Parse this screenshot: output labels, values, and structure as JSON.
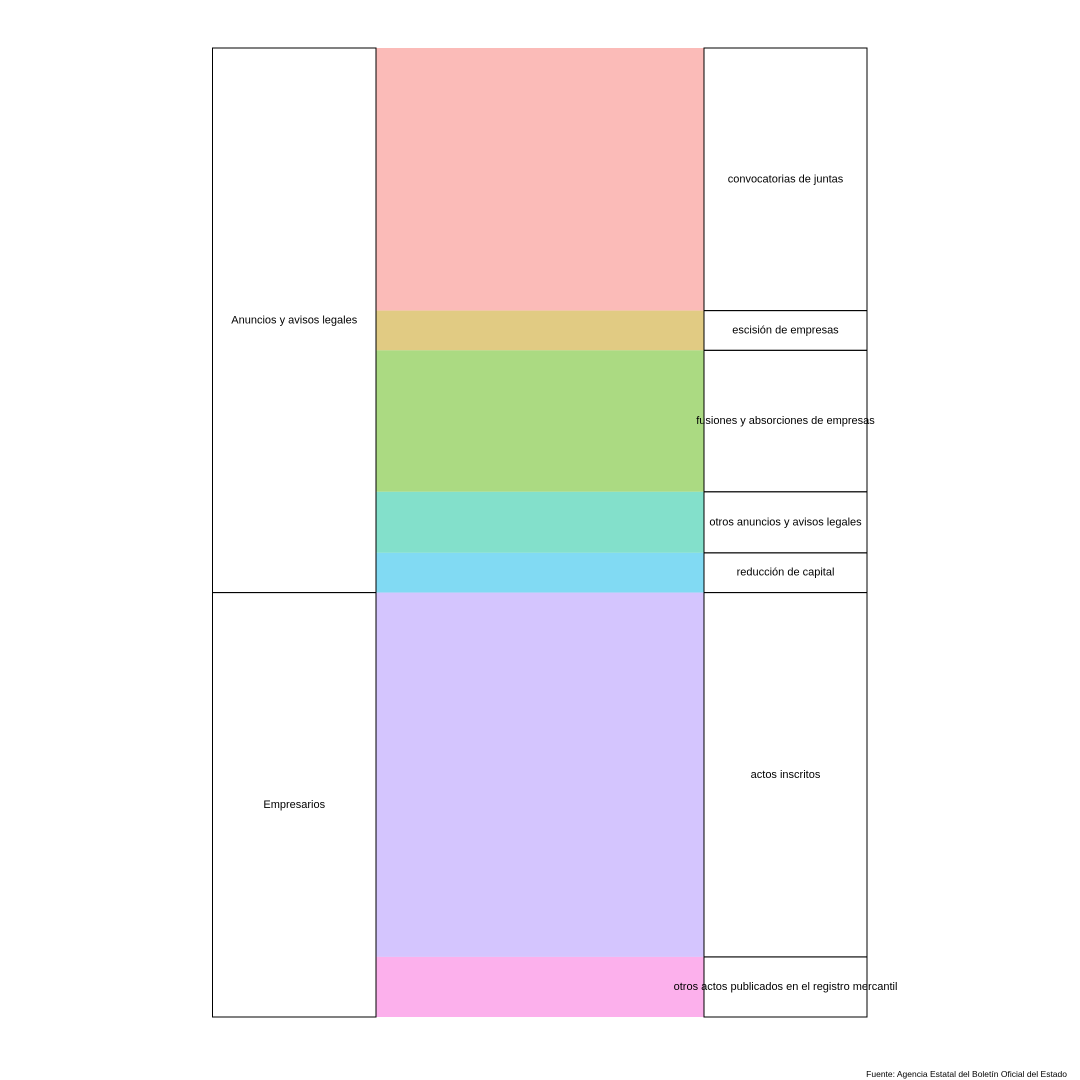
{
  "caption": "Fuente: Agencia Estatal del Boletín Oficial del Estado",
  "chart_data": {
    "type": "alluvial",
    "title": "",
    "xlabel": "",
    "ylabel": "",
    "units": "share of total height",
    "axes": [
      "category",
      "subcategory"
    ],
    "categories": [
      {
        "name": "Anuncios y avisos legales",
        "subcategories": [
          {
            "name": "convocatorias de juntas",
            "value": 0.271,
            "color": "#FBBBB8"
          },
          {
            "name": "escisión de empresas",
            "value": 0.041,
            "color": "#E1CB83"
          },
          {
            "name": "fusiones y absorciones de empresas",
            "value": 0.146,
            "color": "#ABDA82"
          },
          {
            "name": "otros anuncios y avisos legales",
            "value": 0.063,
            "color": "#83E0CB"
          },
          {
            "name": "reducción de capital",
            "value": 0.041,
            "color": "#81DAF3"
          }
        ]
      },
      {
        "name": "Empresarios",
        "subcategories": [
          {
            "name": "actos inscritos",
            "value": 0.376,
            "color": "#D4C5FE"
          },
          {
            "name": "otros actos publicados en el registro mercantil",
            "value": 0.062,
            "color": "#FCB0EC"
          }
        ]
      }
    ]
  }
}
